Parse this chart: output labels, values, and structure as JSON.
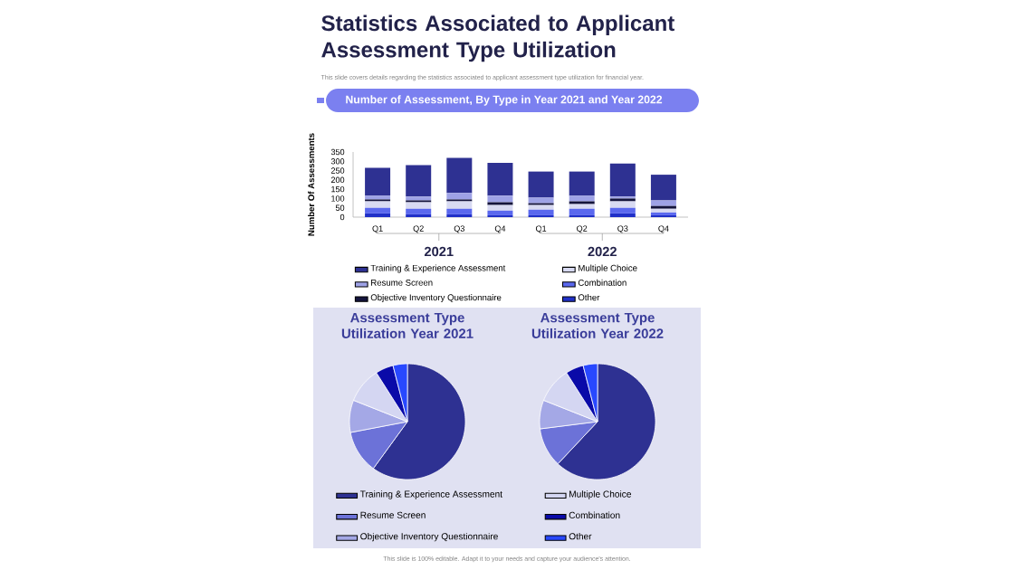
{
  "chart_data": [
    {
      "type": "bar",
      "stacked": true,
      "title": "Statistics Associated to Applicant Assessment Type Utilization",
      "subtitle": "This slide covers details regarding the statistics associated to applicant assessment type utilization for financial year.",
      "ylabel": "Number Of Assessments",
      "categories": [
        "Q1",
        "Q2",
        "Q3",
        "Q4",
        "Q1",
        "Q2",
        "Q3",
        "Q4"
      ],
      "series": [
        {
          "name": "Other",
          "color": "#2030c8",
          "values": [
            20,
            15,
            15,
            10,
            10,
            10,
            20,
            10
          ]
        },
        {
          "name": "Combination",
          "color": "#5a68ee",
          "values": [
            30,
            30,
            30,
            25,
            30,
            35,
            30,
            15
          ]
        },
        {
          "name": "Multiple Choice",
          "color": "#d8daf2",
          "values": [
            35,
            35,
            40,
            30,
            25,
            25,
            35,
            20
          ]
        },
        {
          "name": "Objective Inventory Questionnaire",
          "color": "#14143c",
          "values": [
            10,
            10,
            10,
            15,
            10,
            15,
            15,
            15
          ]
        },
        {
          "name": "Resume Screen",
          "color": "#9ea2e6",
          "values": [
            20,
            20,
            35,
            35,
            30,
            30,
            10,
            30
          ]
        },
        {
          "name": "Training & Experience Assessment",
          "color": "#2e3192",
          "values": [
            150,
            170,
            188,
            177,
            140,
            130,
            178,
            138
          ]
        }
      ],
      "ylim": [
        0,
        350
      ],
      "yticks": [
        0,
        50,
        100,
        150,
        200,
        250,
        300,
        350
      ],
      "legend": "bottom",
      "annotations": [
        "Number of Assessment, By Type in Year 2021 and Year 2022",
        "2021",
        "2022",
        "This slide is 100% editable. Adapt it to your needs and capture your audience's attention."
      ]
    },
    {
      "type": "pie",
      "title": "Assessment Type Utilization Year 2021",
      "legend": "bottom",
      "categories": [
        "Training & Experience Assessment",
        "Resume Screen",
        "Objective Inventory Questionnaire",
        "Multiple Choice",
        "Combination",
        "Other"
      ],
      "values": [
        60,
        12,
        9,
        10,
        5,
        4
      ],
      "colors": [
        "#2e3192",
        "#6c72d8",
        "#a4a8e6",
        "#d4d6f2",
        "#0a0aa8",
        "#2848ff"
      ]
    },
    {
      "type": "pie",
      "title": "Assessment Type Utilization Year 2022",
      "categories": [
        null,
        null,
        null,
        null,
        null,
        null
      ],
      "values": [
        62,
        11,
        8,
        10,
        5,
        4
      ],
      "colors": [
        "#2e3192",
        "#6c72d8",
        "#a4a8e6",
        "#d4d6f2",
        "#0a0aa8",
        "#2848ff"
      ]
    }
  ]
}
